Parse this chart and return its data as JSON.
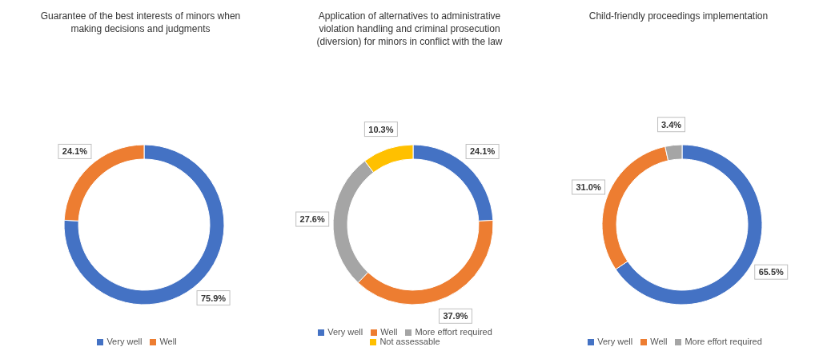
{
  "chart_data": [
    {
      "type": "donut",
      "title": "Guarantee of the best interests of minors when making decisions and judgments",
      "categories": [
        "Very well",
        "Well"
      ],
      "values": [
        75.9,
        24.1
      ],
      "colors": [
        "#4472c4",
        "#ed7d31"
      ],
      "value_labels": [
        "75.9%",
        "24.1%"
      ],
      "legend": "bottom"
    },
    {
      "type": "donut",
      "title": "Application of alternatives to administrative violation handling and criminal prosecution (diversion) for minors in conflict with the law",
      "categories": [
        "Very well",
        "Well",
        "More effort required",
        "Not assessable"
      ],
      "values": [
        24.1,
        37.9,
        27.6,
        10.3
      ],
      "colors": [
        "#4472c4",
        "#ed7d31",
        "#a5a5a5",
        "#ffc000"
      ],
      "value_labels": [
        "24.1%",
        "37.9%",
        "27.6%",
        "10.3%"
      ],
      "legend": "bottom"
    },
    {
      "type": "donut",
      "title": "Child-friendly proceedings implementation",
      "categories": [
        "Very well",
        "Well",
        "More effort required"
      ],
      "values": [
        65.5,
        31.0,
        3.4
      ],
      "colors": [
        "#4472c4",
        "#ed7d31",
        "#a5a5a5"
      ],
      "value_labels": [
        "65.5%",
        "31.0%",
        "3.4%"
      ],
      "legend": "bottom"
    }
  ]
}
